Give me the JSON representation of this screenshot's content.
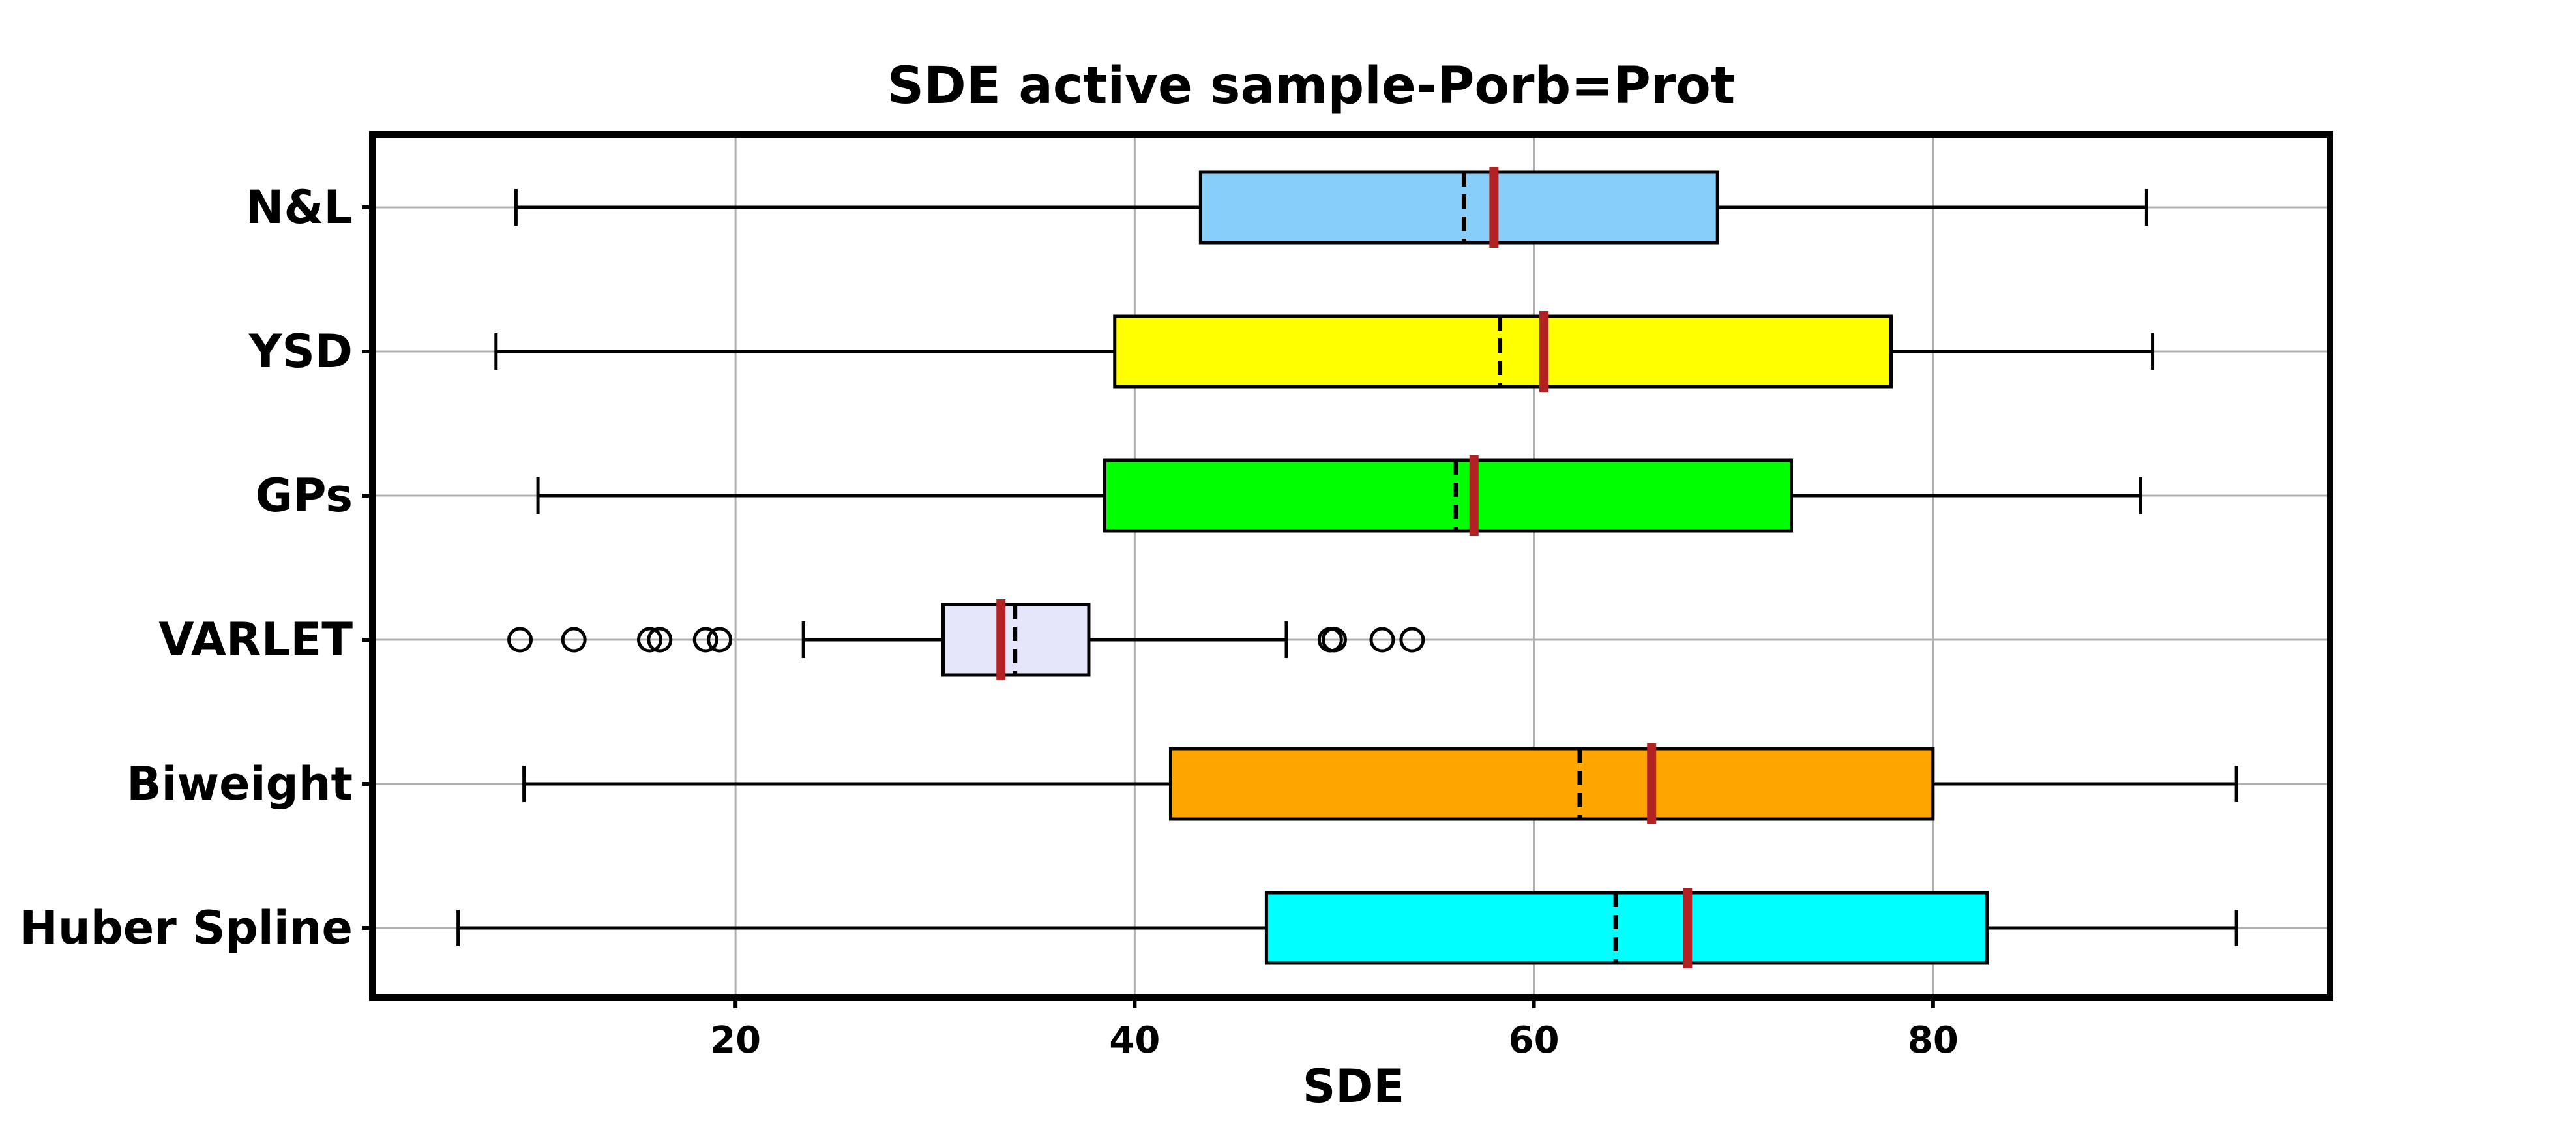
{
  "chart_data": {
    "type": "boxplot",
    "orientation": "horizontal",
    "title": "SDE active sample-Porb=Prot",
    "xlabel": "SDE",
    "ylabel": "",
    "xlim": [
      1.8,
      99.9
    ],
    "xticks": [
      20,
      40,
      60,
      80
    ],
    "grid": true,
    "legend": "none",
    "median_line_style": "dashed black",
    "mean_line_color": "#b22222",
    "series": [
      {
        "name": "N&L",
        "whisker_low": 9.0,
        "q1": 43.3,
        "median": 56.5,
        "mean": 58.0,
        "q3": 69.2,
        "whisker_high": 90.7,
        "outliers": [],
        "color": "#87cefa"
      },
      {
        "name": "YSD",
        "whisker_low": 8.0,
        "q1": 39.0,
        "median": 58.3,
        "mean": 60.5,
        "q3": 77.9,
        "whisker_high": 91.0,
        "outliers": [],
        "color": "#ffff00"
      },
      {
        "name": "GPs",
        "whisker_low": 10.1,
        "q1": 38.5,
        "median": 56.1,
        "mean": 57.0,
        "q3": 72.9,
        "whisker_high": 90.4,
        "outliers": [],
        "color": "#00ff00"
      },
      {
        "name": "VARLET",
        "whisker_low": 23.4,
        "q1": 30.4,
        "median": 34.0,
        "mean": 33.3,
        "q3": 37.7,
        "whisker_high": 47.6,
        "outliers": [
          9.2,
          11.9,
          15.7,
          16.2,
          18.5,
          19.2,
          49.8,
          50.0,
          52.4,
          53.9
        ],
        "color": "#e6e6fa"
      },
      {
        "name": "Biweight",
        "whisker_low": 9.4,
        "q1": 41.8,
        "median": 62.3,
        "mean": 65.9,
        "q3": 80.0,
        "whisker_high": 95.2,
        "outliers": [],
        "color": "#ffa500"
      },
      {
        "name": "Huber Spline",
        "whisker_low": 6.1,
        "q1": 46.6,
        "median": 64.1,
        "mean": 67.7,
        "q3": 82.7,
        "whisker_high": 95.2,
        "outliers": [],
        "color": "#00ffff"
      }
    ]
  }
}
